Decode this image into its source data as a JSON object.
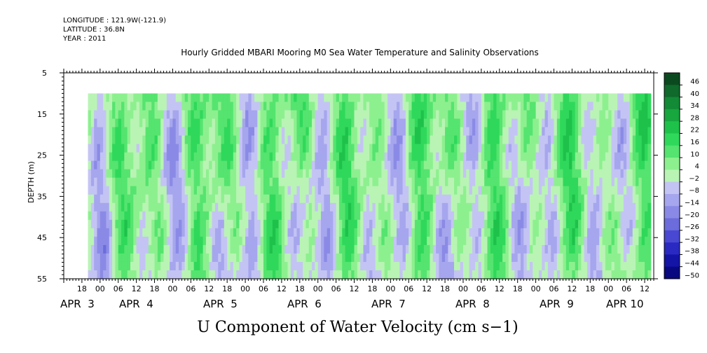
{
  "header": {
    "longitude": "LONGITUDE : 121.9W(-121.9)",
    "latitude": "LATITUDE : 36.8N",
    "year": "YEAR : 2011"
  },
  "chart_data": {
    "type": "heatmap",
    "title": "Hourly Gridded MBARI Mooring M0 Sea Water Temperature and Salinity Observations",
    "xlabel": "U Component of Water Velocity (cm s−1)",
    "ylabel": "DEPTH (m)",
    "ylim": [
      55,
      5
    ],
    "y_ticks": [
      "5",
      "15",
      "25",
      "35",
      "45",
      "55"
    ],
    "x_hour_ticks": [
      "18",
      "00",
      "06",
      "12",
      "18",
      "00",
      "06",
      "12",
      "18",
      "00",
      "06",
      "12",
      "18",
      "00",
      "06",
      "12",
      "18",
      "00",
      "06",
      "12",
      "18",
      "00",
      "06",
      "12",
      "18",
      "00",
      "06",
      "12",
      "18",
      "00",
      "06",
      "12"
    ],
    "x_day_labels": [
      "APR  3",
      "APR  4",
      "APR  5",
      "APR  6",
      "APR  7",
      "APR  8",
      "APR  9",
      "APR 10"
    ],
    "data_start": "APR 2 20:00",
    "data_end": "APR 10 14:00",
    "depth_range": [
      10,
      55
    ],
    "colorbar_levels": [
      "46",
      "40",
      "34",
      "28",
      "22",
      "16",
      "10",
      "4",
      "−2",
      "−8",
      "−14",
      "−20",
      "−26",
      "−32",
      "−38",
      "−44",
      "−50"
    ],
    "colorbar_colors": [
      "#0b4a1f",
      "#0f6a2c",
      "#138a36",
      "#18a63f",
      "#1ec24a",
      "#2fd85a",
      "#55e46f",
      "#8df08f",
      "#b9f4b4",
      "#c4c4f4",
      "#a6a6ee",
      "#8a8ae6",
      "#6c6cdc",
      "#4848d2",
      "#2a2ac2",
      "#1414a6",
      "#080880"
    ],
    "grid": false,
    "colorbar": "right"
  }
}
